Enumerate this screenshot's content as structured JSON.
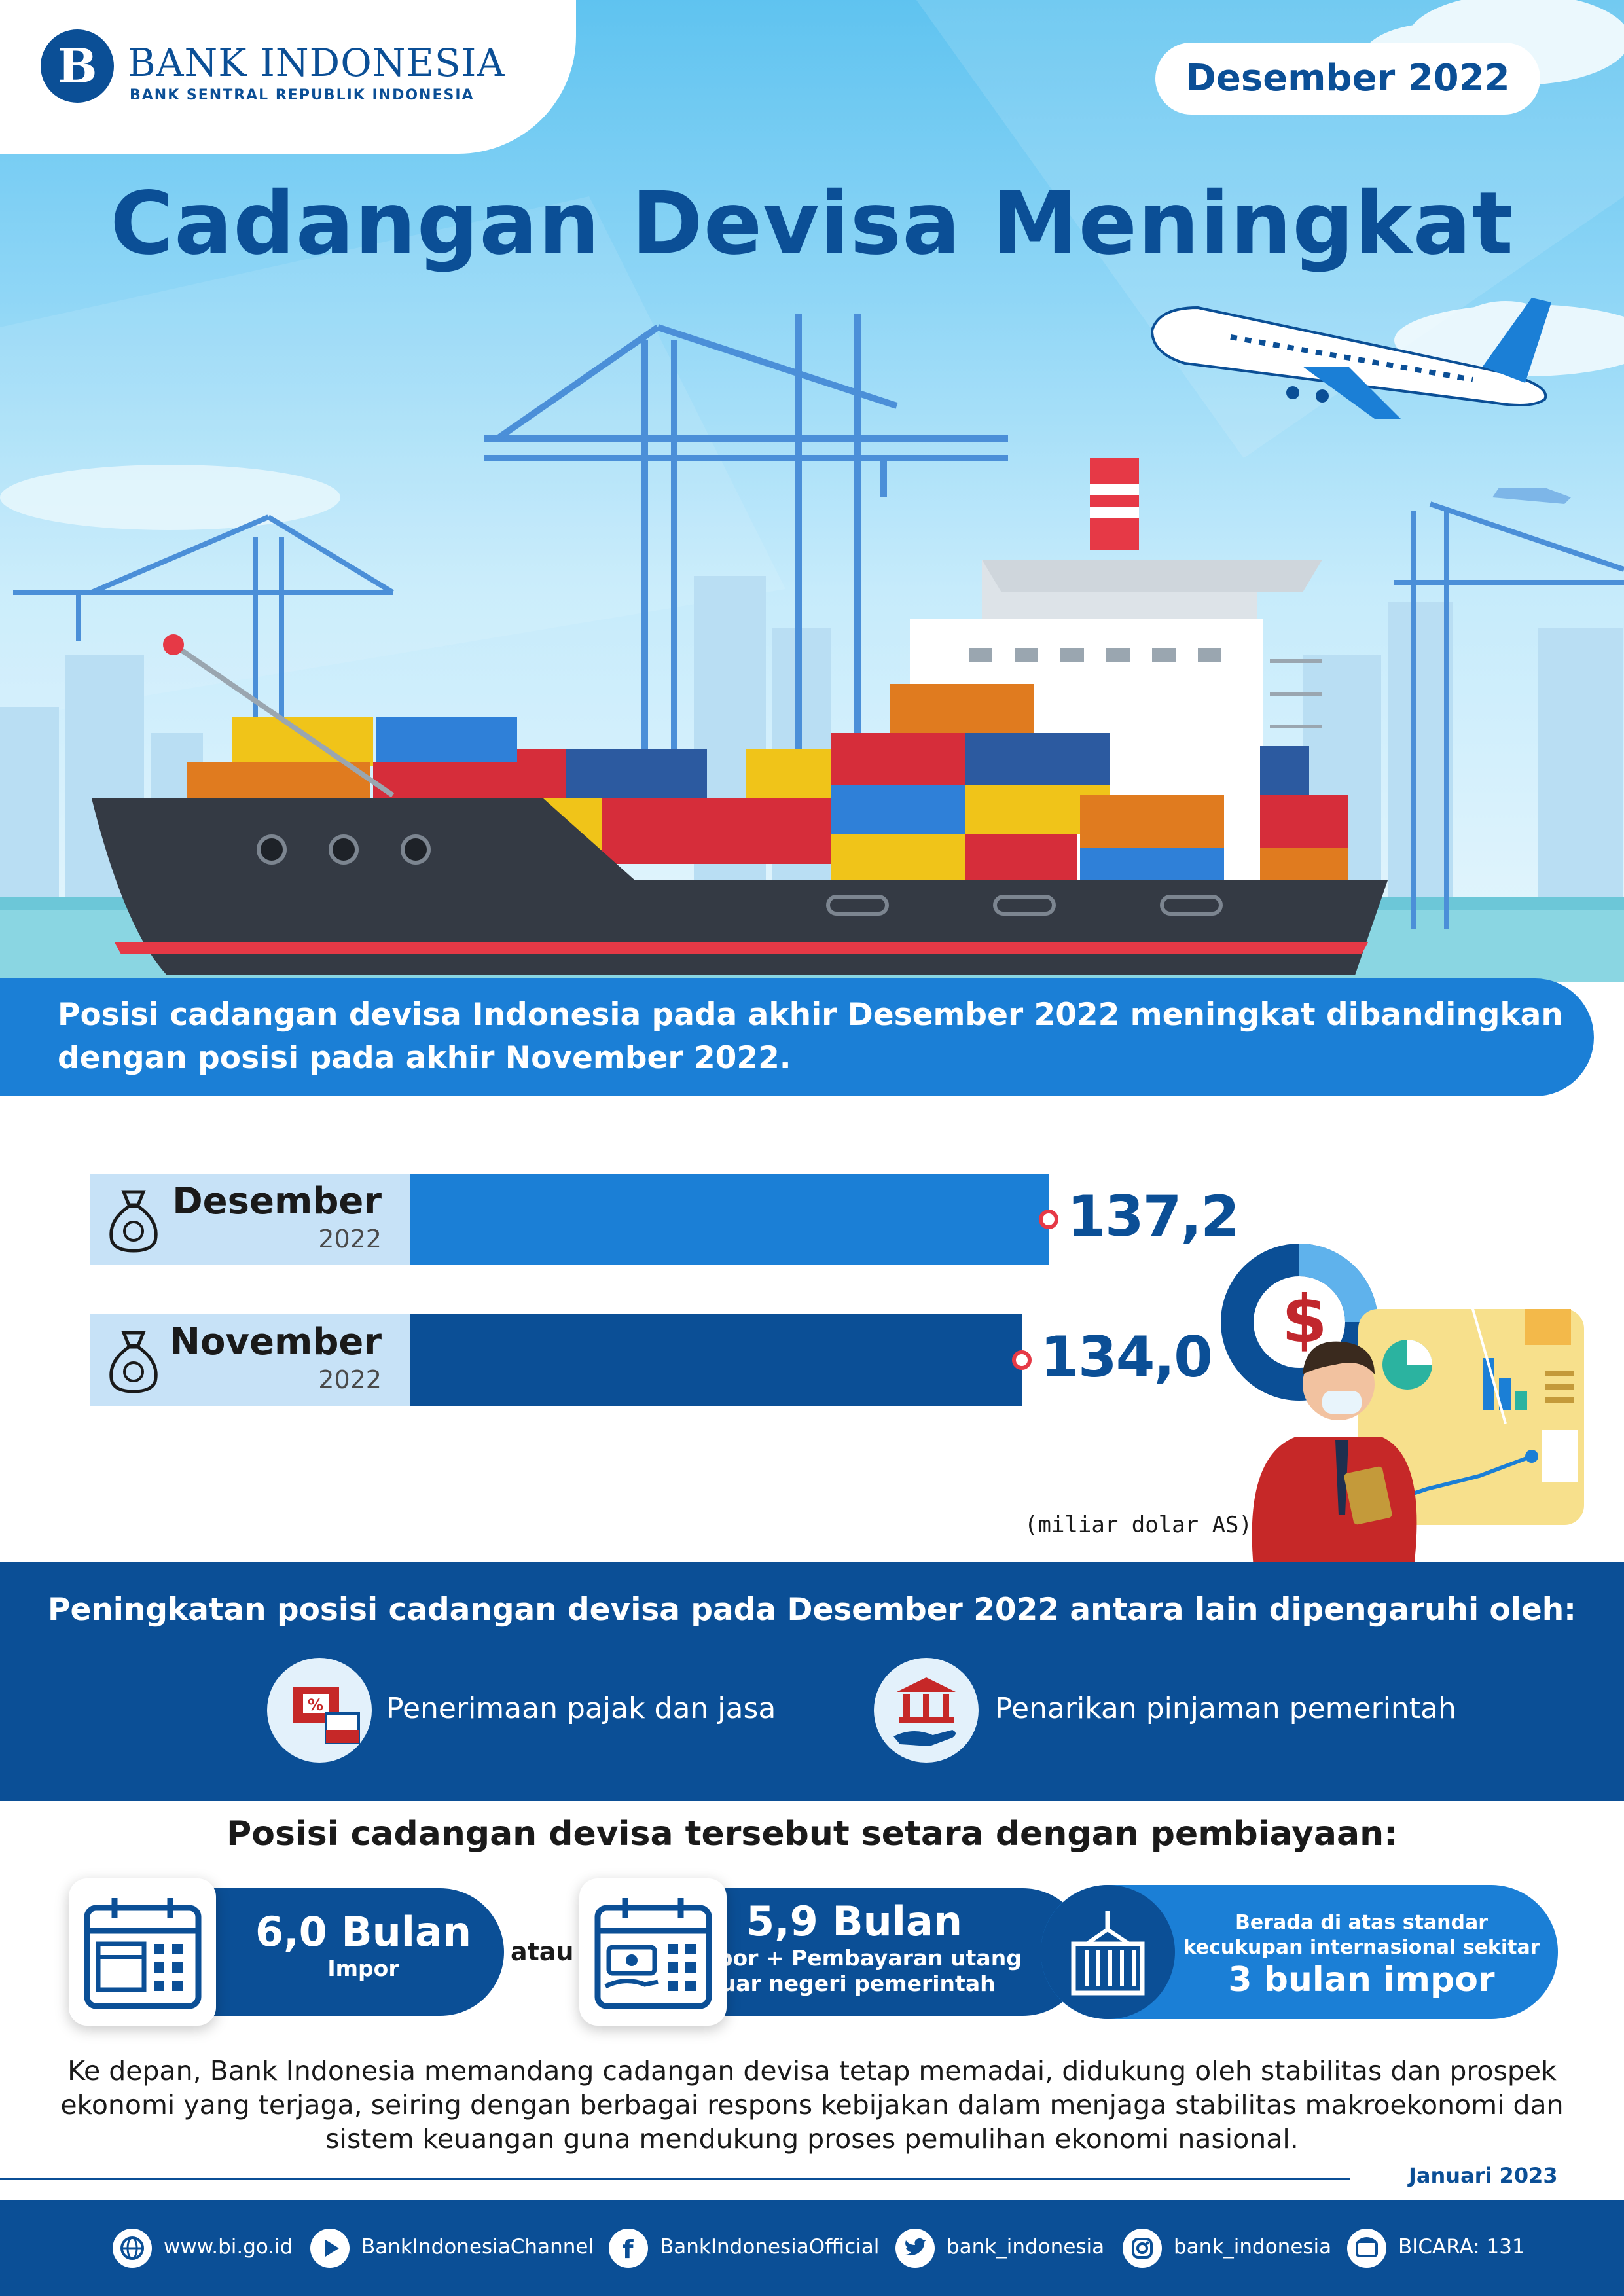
{
  "header": {
    "logo_letter": "B",
    "logo_name": "BANK INDONESIA",
    "logo_subtitle": "BANK SENTRAL REPUBLIK INDONESIA",
    "period": "Desember 2022"
  },
  "title": "Cadangan Devisa Meningkat",
  "intro": "Posisi cadangan devisa Indonesia pada akhir Desember 2022 meningkat dibandingkan dengan posisi pada akhir November 2022.",
  "chart_data": {
    "type": "bar",
    "categories": [
      "Desember 2022",
      "November 2022"
    ],
    "series": [
      {
        "values": [
          137.2,
          134.0
        ]
      }
    ],
    "bars": [
      {
        "month": "Desember",
        "year": "2022",
        "value": 137.2,
        "value_label": "137,2",
        "color": "#1b7fd6"
      },
      {
        "month": "November",
        "year": "2022",
        "value": 134.0,
        "value_label": "134,0",
        "color": "#0b4f96"
      }
    ],
    "unit": "(miliar dolar AS)"
  },
  "factors": {
    "title": "Peningkatan posisi cadangan devisa pada Desember 2022 antara lain dipengaruhi oleh:",
    "items": [
      {
        "label": "Penerimaan pajak dan jasa",
        "icon": "tax-receipt-icon"
      },
      {
        "label": "Penarikan pinjaman pemerintah",
        "icon": "bank-loan-icon"
      }
    ]
  },
  "equivalent": {
    "title": "Posisi cadangan devisa tersebut setara dengan pembiayaan:",
    "option1": {
      "value": "6,0 Bulan",
      "desc": "Impor",
      "icon": "calendar-box-icon"
    },
    "connector": "atau",
    "option2": {
      "value": "5,9 Bulan",
      "desc_line1": "Impor + Pembayaran utang",
      "desc_line2": "luar negeri pemerintah",
      "icon": "calendar-money-icon"
    },
    "standard": {
      "line1": "Berada di atas standar",
      "line2": "kecukupan internasional sekitar",
      "value": "3 bulan impor",
      "icon": "container-crane-icon"
    }
  },
  "closing": "Ke depan, Bank Indonesia memandang cadangan devisa tetap memadai, didukung oleh stabilitas dan prospek ekonomi yang terjaga, seiring dengan berbagai respons kebijakan dalam menjaga stabilitas makroekonomi dan sistem keuangan guna mendukung proses pemulihan ekonomi nasional.",
  "publication_date": "Januari 2023",
  "footer": {
    "links": [
      {
        "label": "www.bi.go.id",
        "icon": "globe-icon"
      },
      {
        "label": "BankIndonesiaChannel",
        "icon": "youtube-icon"
      },
      {
        "label": "BankIndonesiaOfficial",
        "icon": "facebook-icon"
      },
      {
        "label": "bank_indonesia",
        "icon": "twitter-icon"
      },
      {
        "label": "bank_indonesia",
        "icon": "instagram-icon"
      },
      {
        "label": "BICARA: 131",
        "icon": "phone-icon"
      }
    ]
  },
  "colors": {
    "primary": "#0b4f96",
    "accent": "#1b7fd6",
    "highlight": "#e63946",
    "light": "#c7e2f7"
  }
}
